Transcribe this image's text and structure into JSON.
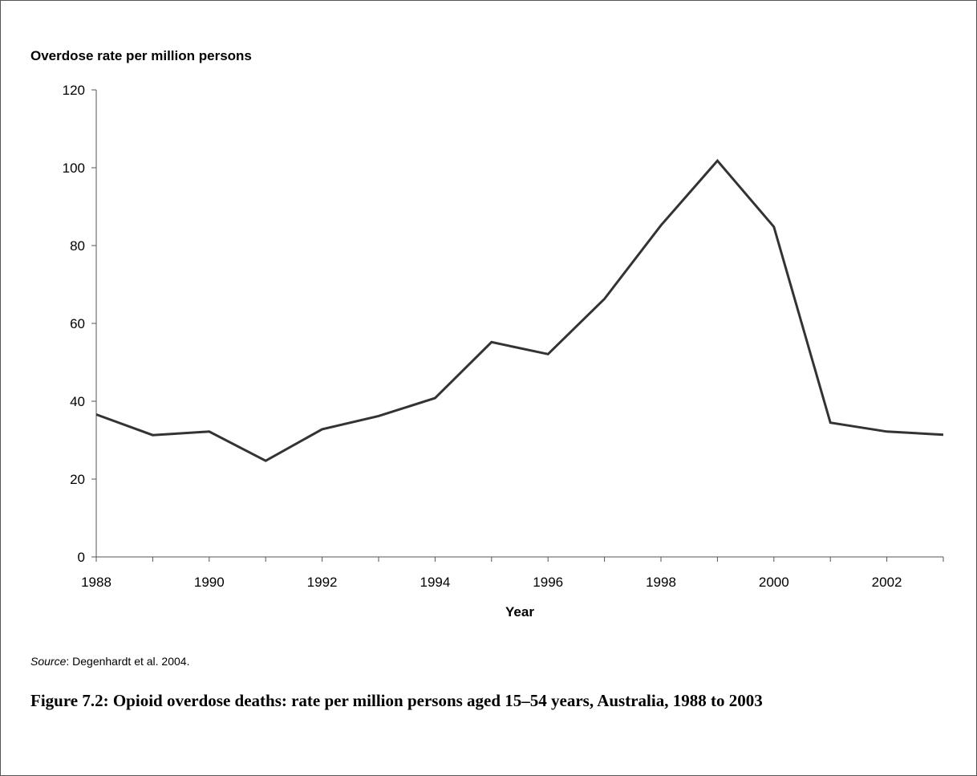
{
  "chart_data": {
    "type": "line",
    "ylabel": "Overdose rate per million persons",
    "xlabel": "Year",
    "xlim": [
      1988,
      2003
    ],
    "ylim": [
      0,
      120
    ],
    "yticks": [
      0,
      20,
      40,
      60,
      80,
      100,
      120
    ],
    "xticks": [
      1988,
      1990,
      1992,
      1994,
      1996,
      1998,
      2000,
      2002
    ],
    "grid": false,
    "series": [
      {
        "x": [
          1988,
          1989,
          1990,
          1991,
          1992,
          1993,
          1994,
          1995,
          1996,
          1997,
          1998,
          1999,
          2000,
          2001,
          2002,
          2003
        ],
        "values": [
          36.6,
          31.3,
          32.2,
          24.7,
          32.8,
          36.2,
          40.8,
          55.2,
          52.1,
          66.3,
          85.2,
          101.8,
          84.8,
          34.5,
          32.2,
          31.4
        ],
        "color": "#333333"
      }
    ]
  },
  "source": {
    "label": "Source",
    "text": ": Degenhardt et al. 2004."
  },
  "caption": "Figure 7.2: Opioid overdose deaths: rate per million persons aged 15–54 years, Australia, 1988 to 2003"
}
